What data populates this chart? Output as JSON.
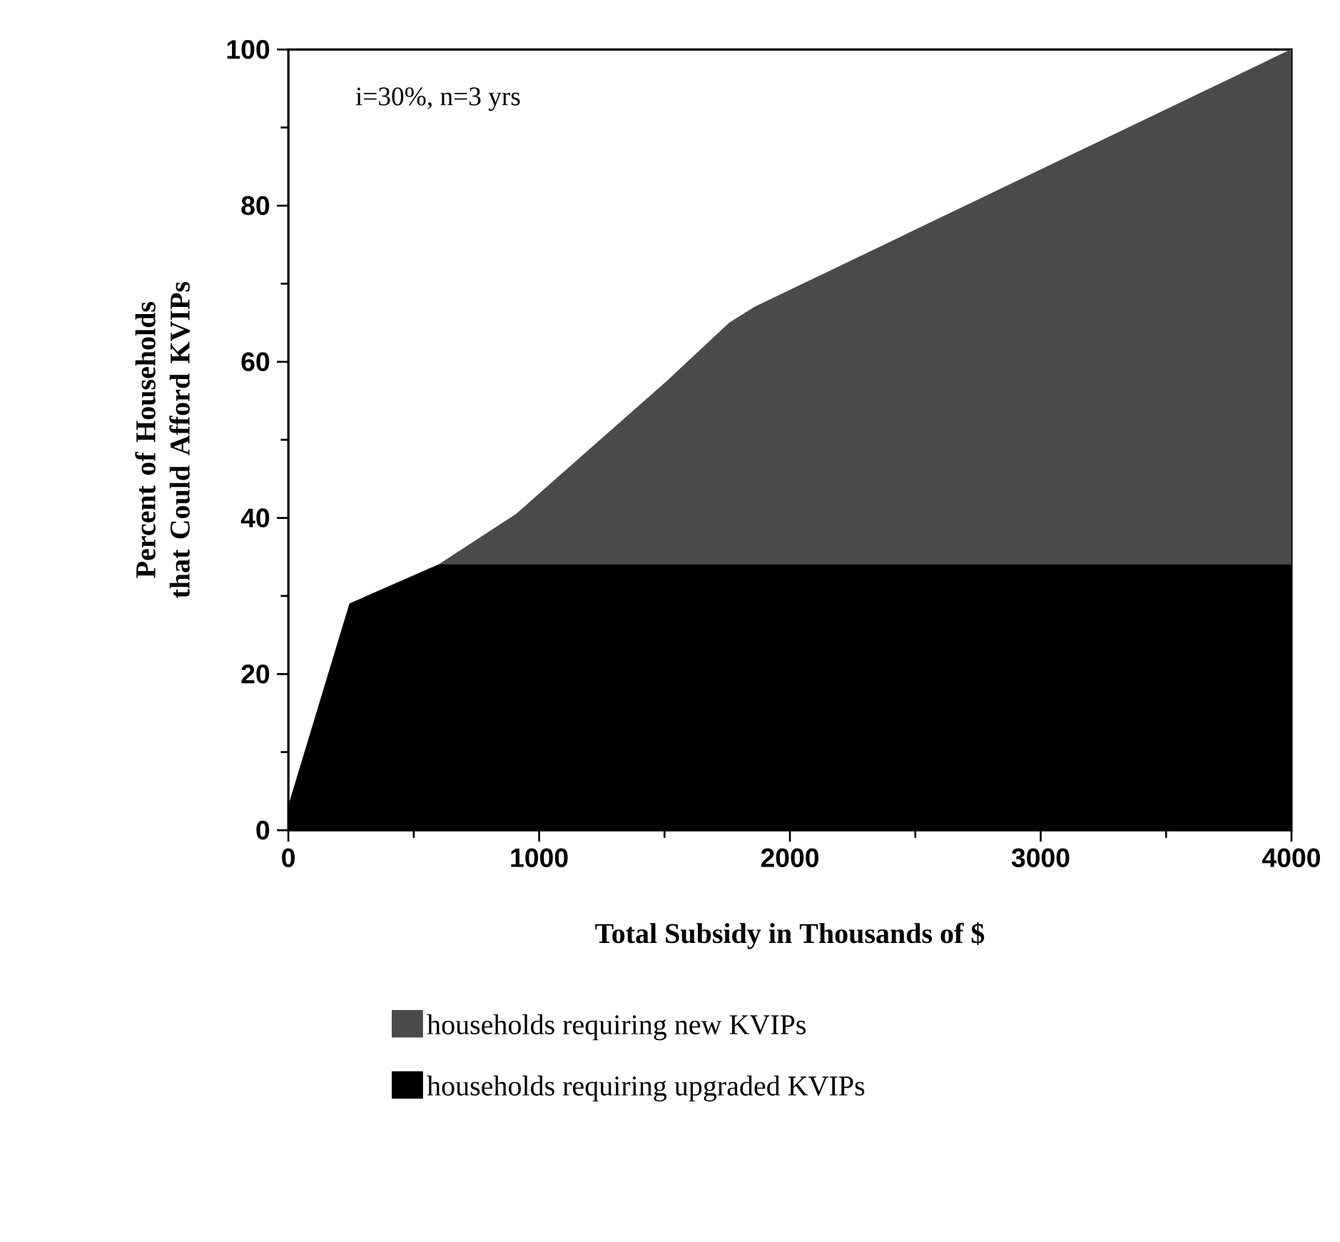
{
  "chart_data": {
    "type": "area",
    "stacked": true,
    "xlabel": "Total Subsidy in Thousands of $",
    "ylabel": "Percent of Households that Could Afford KVIPs",
    "annotations": [
      "i=30%, n=3 yrs"
    ],
    "x": [
      0,
      245,
      600,
      910,
      1510,
      1760,
      1860,
      4000
    ],
    "series": [
      {
        "name": "households requiring upgraded KVIPs",
        "color": "#000000",
        "values": [
          3,
          29,
          34,
          34,
          34,
          34,
          34,
          34
        ]
      },
      {
        "name": "households requiring new KVIPs",
        "color": "#4a4a4a",
        "values": [
          0,
          0,
          0,
          6.5,
          23.5,
          31,
          33,
          66
        ]
      }
    ],
    "xlim": [
      0,
      4000
    ],
    "ylim": [
      0,
      100
    ],
    "xticks": [
      0,
      1000,
      2000,
      3000,
      4000
    ],
    "yticks": [
      0,
      20,
      40,
      60,
      80,
      100
    ],
    "legend": "bottom"
  }
}
